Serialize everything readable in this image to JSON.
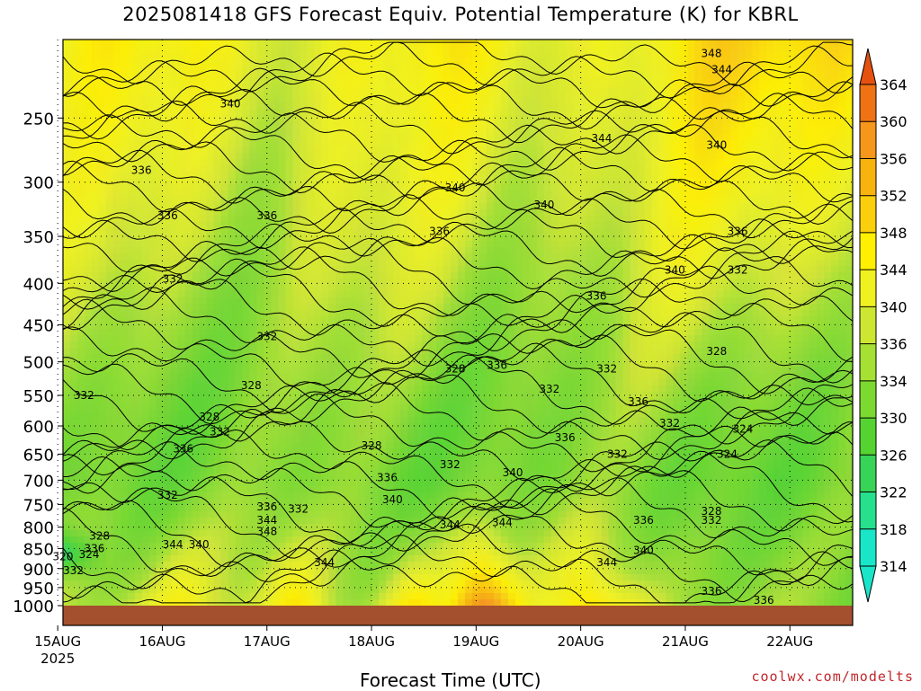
{
  "page": {
    "title": "2025081418 GFS Forecast Equiv. Potential Temperature (K) for KBRL",
    "credit": "coolwx.com/modelts"
  },
  "chart_data": {
    "type": "heatmap",
    "title": "2025081418 GFS Forecast Equiv. Potential Temperature (K) for KBRL",
    "xlabel": "Forecast Time (UTC)",
    "ylabel": "",
    "x_ticks": [
      "15AUG",
      "16AUG",
      "17AUG",
      "18AUG",
      "19AUG",
      "20AUG",
      "21AUG",
      "22AUG"
    ],
    "x_sublabel": "2025",
    "y_ticks": [
      250,
      300,
      350,
      400,
      450,
      500,
      550,
      600,
      650,
      700,
      750,
      800,
      850,
      900,
      950,
      1000
    ],
    "y_range_hPa": [
      200,
      1000
    ],
    "grid": true,
    "colorbar": {
      "ticks": [
        314,
        318,
        322,
        326,
        330,
        334,
        336,
        340,
        344,
        348,
        352,
        356,
        360,
        364
      ],
      "colors": [
        "#19e6c8",
        "#27e08e",
        "#37d457",
        "#55d431",
        "#7bd930",
        "#a6e033",
        "#cde632",
        "#eff21f",
        "#fef000",
        "#fccf0c",
        "#f9b30e",
        "#f6961b",
        "#ef7314",
        "#e5520f"
      ]
    },
    "contour_labels": [
      {
        "t": 0.2,
        "p": 550,
        "v": "332"
      },
      {
        "t": 0.0,
        "p": 870,
        "v": "320"
      },
      {
        "t": 0.25,
        "p": 865,
        "v": "324"
      },
      {
        "t": 0.1,
        "p": 905,
        "v": "332"
      },
      {
        "t": 0.35,
        "p": 820,
        "v": "328"
      },
      {
        "t": 0.3,
        "p": 850,
        "v": "336"
      },
      {
        "t": 0.75,
        "p": 290,
        "v": "336"
      },
      {
        "t": 1.0,
        "p": 330,
        "v": "336"
      },
      {
        "t": 1.05,
        "p": 395,
        "v": "332"
      },
      {
        "t": 1.6,
        "p": 240,
        "v": "340"
      },
      {
        "t": 1.95,
        "p": 330,
        "v": "336"
      },
      {
        "t": 1.95,
        "p": 465,
        "v": "332"
      },
      {
        "t": 1.8,
        "p": 535,
        "v": "328"
      },
      {
        "t": 1.4,
        "p": 585,
        "v": "328"
      },
      {
        "t": 1.5,
        "p": 610,
        "v": "332"
      },
      {
        "t": 1.15,
        "p": 640,
        "v": "336"
      },
      {
        "t": 1.0,
        "p": 730,
        "v": "332"
      },
      {
        "t": 1.05,
        "p": 840,
        "v": "344"
      },
      {
        "t": 1.3,
        "p": 840,
        "v": "340"
      },
      {
        "t": 1.95,
        "p": 755,
        "v": "336"
      },
      {
        "t": 1.95,
        "p": 785,
        "v": "344"
      },
      {
        "t": 1.95,
        "p": 810,
        "v": "348"
      },
      {
        "t": 2.25,
        "p": 760,
        "v": "332"
      },
      {
        "t": 2.5,
        "p": 885,
        "v": "344"
      },
      {
        "t": 2.95,
        "p": 635,
        "v": "328"
      },
      {
        "t": 3.1,
        "p": 695,
        "v": "336"
      },
      {
        "t": 3.15,
        "p": 740,
        "v": "340"
      },
      {
        "t": 3.6,
        "p": 345,
        "v": "336"
      },
      {
        "t": 3.75,
        "p": 305,
        "v": "340"
      },
      {
        "t": 3.75,
        "p": 510,
        "v": "328"
      },
      {
        "t": 3.7,
        "p": 670,
        "v": "332"
      },
      {
        "t": 3.7,
        "p": 795,
        "v": "344"
      },
      {
        "t": 4.15,
        "p": 505,
        "v": "336"
      },
      {
        "t": 4.3,
        "p": 685,
        "v": "340"
      },
      {
        "t": 4.2,
        "p": 790,
        "v": "344"
      },
      {
        "t": 4.6,
        "p": 320,
        "v": "340"
      },
      {
        "t": 4.65,
        "p": 540,
        "v": "332"
      },
      {
        "t": 4.8,
        "p": 620,
        "v": "336"
      },
      {
        "t": 5.1,
        "p": 415,
        "v": "336"
      },
      {
        "t": 5.2,
        "p": 510,
        "v": "332"
      },
      {
        "t": 5.15,
        "p": 265,
        "v": "344"
      },
      {
        "t": 5.3,
        "p": 650,
        "v": "332"
      },
      {
        "t": 5.2,
        "p": 885,
        "v": "344"
      },
      {
        "t": 5.5,
        "p": 560,
        "v": "336"
      },
      {
        "t": 5.55,
        "p": 855,
        "v": "340"
      },
      {
        "t": 5.55,
        "p": 785,
        "v": "336"
      },
      {
        "t": 5.8,
        "p": 595,
        "v": "332"
      },
      {
        "t": 5.85,
        "p": 385,
        "v": "340"
      },
      {
        "t": 6.25,
        "p": 270,
        "v": "340"
      },
      {
        "t": 6.45,
        "p": 345,
        "v": "336"
      },
      {
        "t": 6.45,
        "p": 385,
        "v": "332"
      },
      {
        "t": 6.25,
        "p": 485,
        "v": "328"
      },
      {
        "t": 6.5,
        "p": 605,
        "v": "324"
      },
      {
        "t": 6.35,
        "p": 650,
        "v": "324"
      },
      {
        "t": 6.2,
        "p": 765,
        "v": "328"
      },
      {
        "t": 6.2,
        "p": 785,
        "v": "332"
      },
      {
        "t": 6.2,
        "p": 960,
        "v": "336"
      },
      {
        "t": 6.7,
        "p": 985,
        "v": "336"
      },
      {
        "t": 6.2,
        "p": 208,
        "v": "348"
      },
      {
        "t": 6.3,
        "p": 218,
        "v": "344"
      }
    ]
  }
}
